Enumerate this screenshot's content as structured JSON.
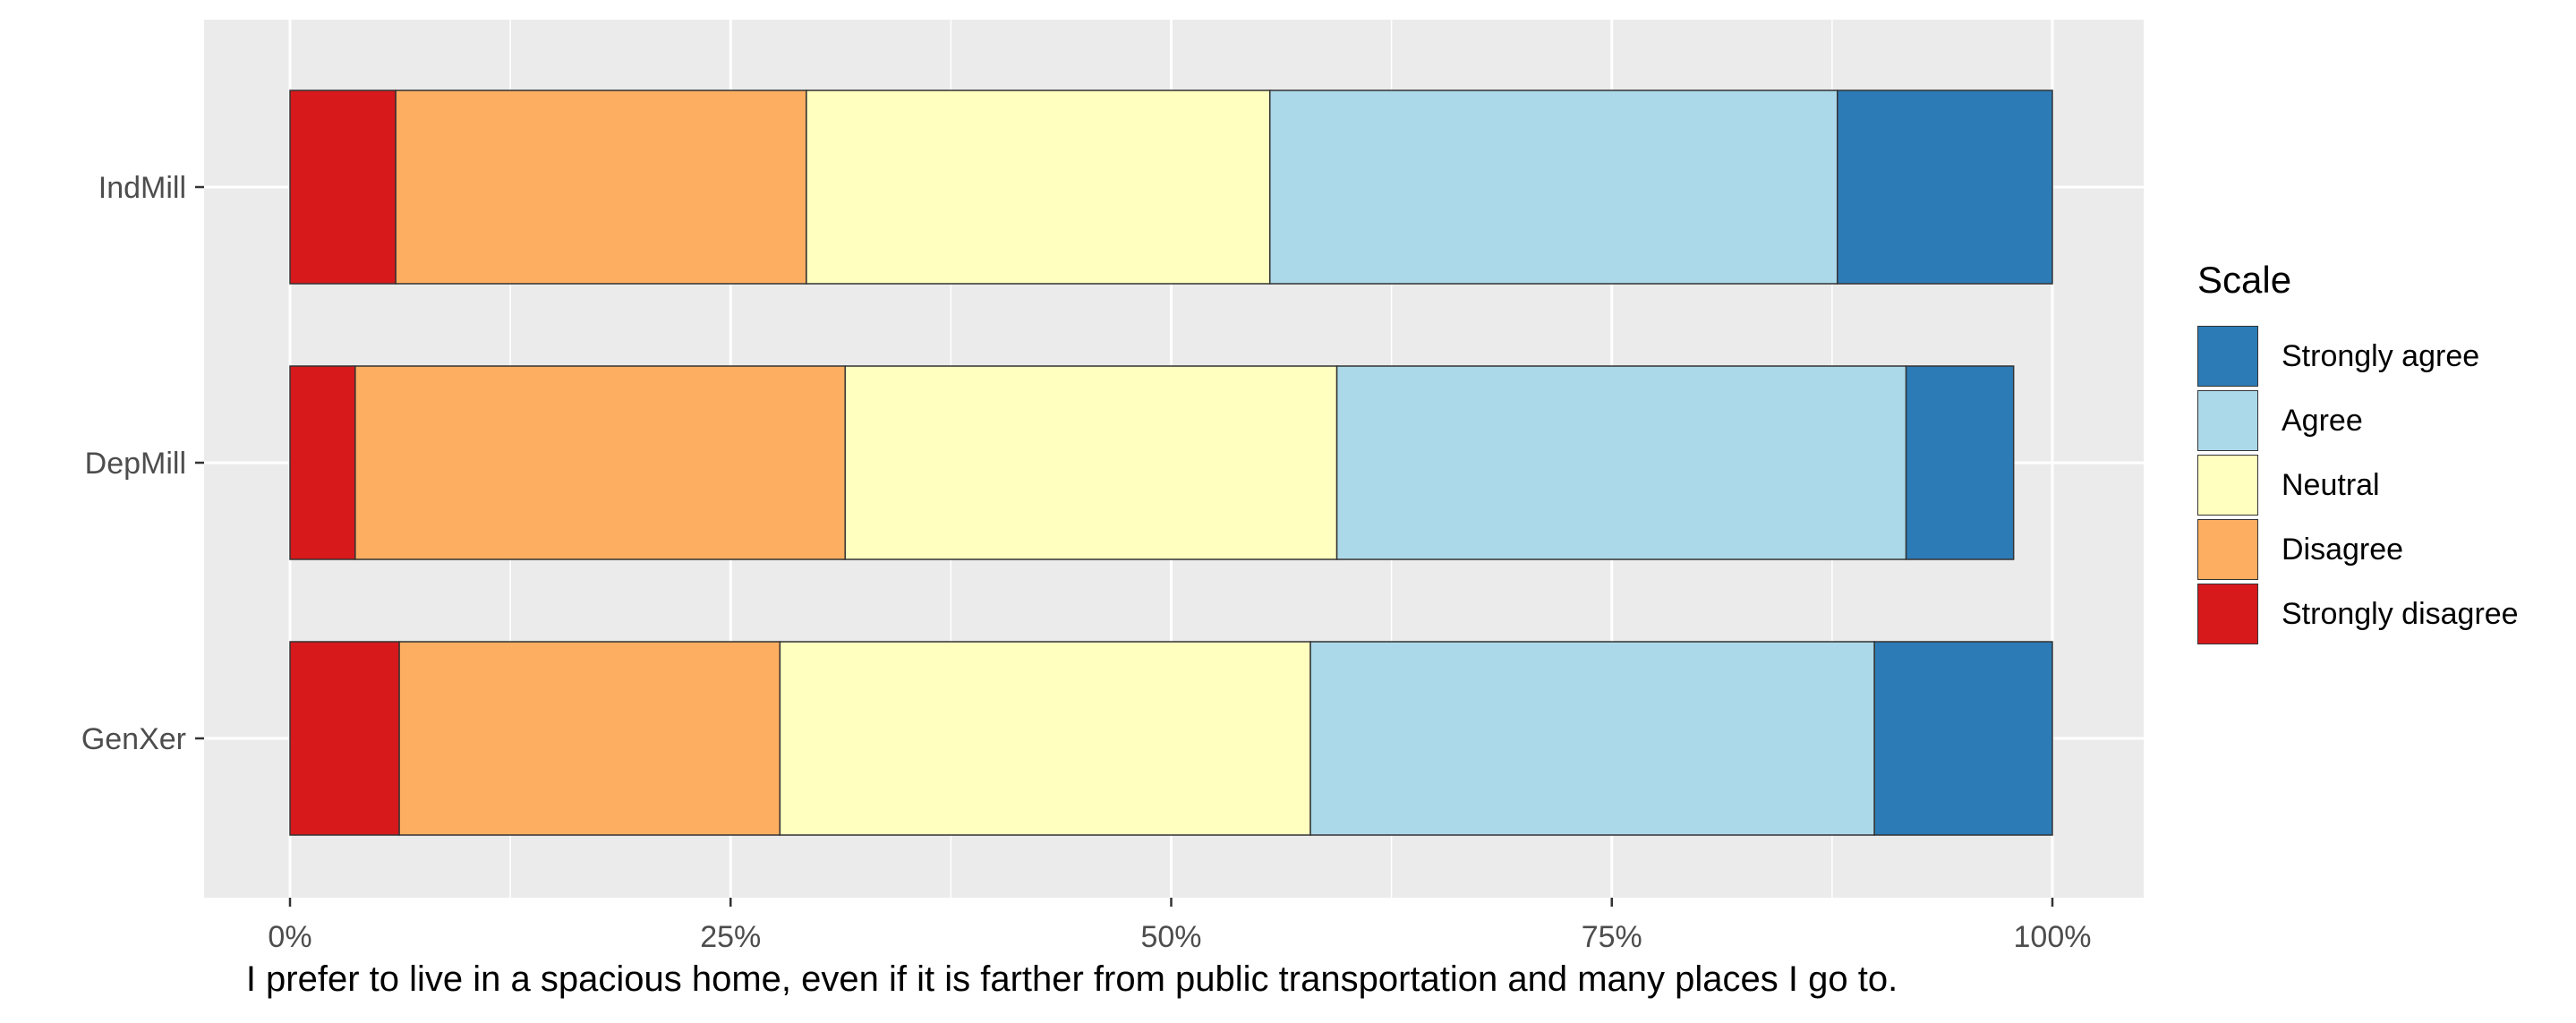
{
  "chart_data": {
    "type": "bar",
    "orientation": "horizontal",
    "stacked": "percent",
    "categories": [
      "GenXer",
      "DepMill",
      "IndMill"
    ],
    "series": [
      {
        "name": "Strongly disagree",
        "color": "#D7191C",
        "values": [
          6.2,
          3.7,
          6.0
        ]
      },
      {
        "name": "Disagree",
        "color": "#FDAE61",
        "values": [
          21.6,
          27.8,
          23.3
        ]
      },
      {
        "name": "Neutral",
        "color": "#FFFFBF",
        "values": [
          30.1,
          27.9,
          26.3
        ]
      },
      {
        "name": "Agree",
        "color": "#ABD9E9",
        "values": [
          32.0,
          32.3,
          32.2
        ]
      },
      {
        "name": "Strongly agree",
        "color": "#2C7BB6",
        "values": [
          10.1,
          6.1,
          12.2
        ]
      }
    ],
    "xticks": [
      "0%",
      "25%",
      "50%",
      "75%",
      "100%"
    ],
    "xlim": [
      -5,
      105
    ],
    "xlabel": "I prefer to live in a spacious home, even if it is farther from public transportation and many places I go to.",
    "ylabel": "",
    "legend": {
      "title": "Scale",
      "position": "right",
      "order": [
        "Strongly agree",
        "Agree",
        "Neutral",
        "Disagree",
        "Strongly disagree"
      ]
    },
    "grid": true,
    "panel_background": "#EBEBEB"
  }
}
